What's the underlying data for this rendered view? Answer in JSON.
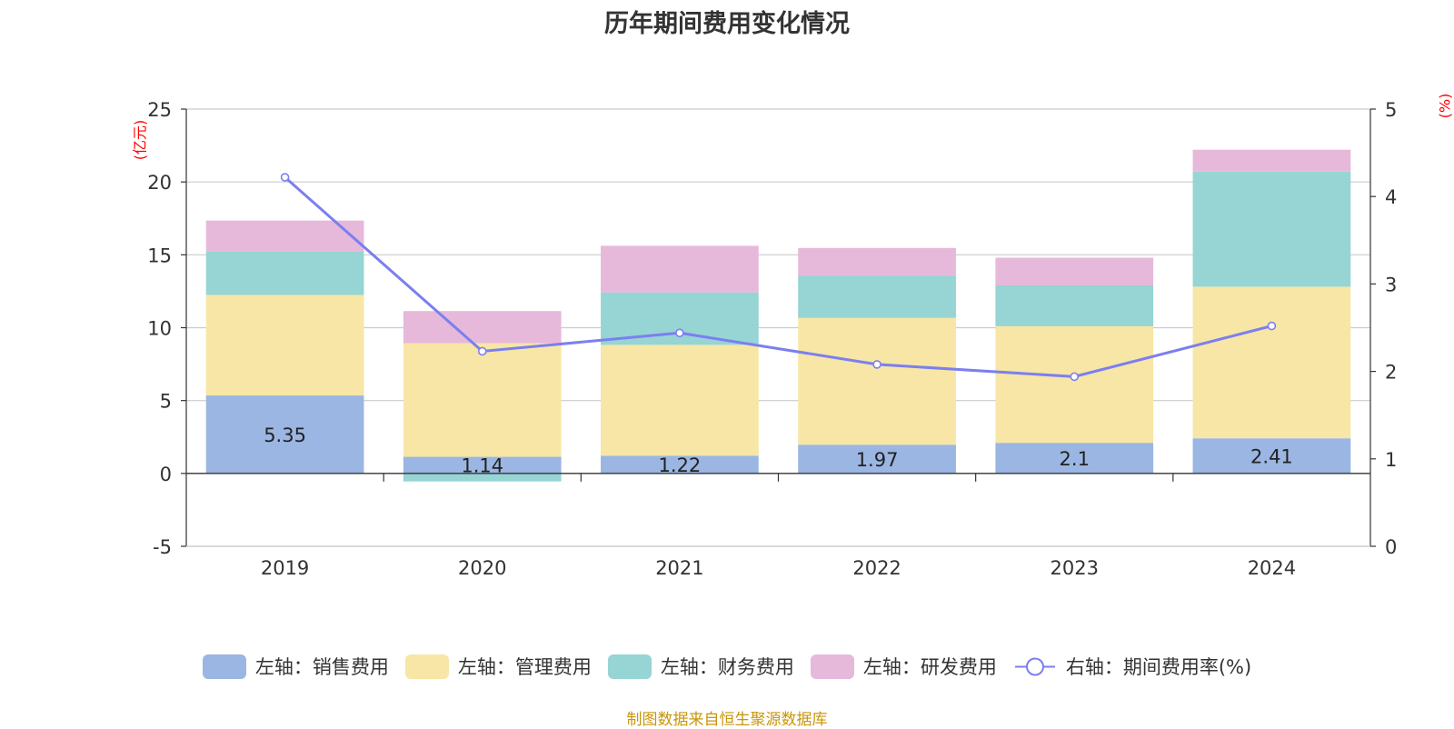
{
  "chart_data": {
    "type": "bar",
    "title": "历年期间费用变化情况",
    "categories": [
      "2019",
      "2020",
      "2021",
      "2022",
      "2023",
      "2024"
    ],
    "series": [
      {
        "name": "左轴：销售费用",
        "axis": "left",
        "color": "#9bb6e2",
        "values": [
          5.35,
          1.14,
          1.22,
          1.97,
          2.1,
          2.41
        ]
      },
      {
        "name": "左轴：管理费用",
        "axis": "left",
        "color": "#f7e6a6",
        "values": [
          6.9,
          7.8,
          7.6,
          8.7,
          8.0,
          10.4
        ]
      },
      {
        "name": "左轴：财务费用",
        "axis": "left",
        "color": "#97d4d4",
        "values": [
          3.0,
          -0.55,
          3.6,
          2.9,
          2.8,
          7.9
        ]
      },
      {
        "name": "左轴：研发费用",
        "axis": "left",
        "color": "#e6b9da",
        "values": [
          2.1,
          2.2,
          3.2,
          1.9,
          1.9,
          1.5
        ]
      },
      {
        "name": "右轴：期间费用率(%)",
        "axis": "right",
        "type": "line",
        "color": "#7b7fef",
        "values": [
          4.22,
          2.23,
          2.44,
          2.08,
          1.94,
          2.52
        ]
      }
    ],
    "label_series": "左轴：销售费用",
    "left_axis": {
      "unit": "(亿元)",
      "ylim": [
        -5,
        25
      ],
      "ticks": [
        25,
        20,
        15,
        10,
        5,
        0,
        -5
      ]
    },
    "right_axis": {
      "unit": "(%)",
      "ylim": [
        0,
        5
      ],
      "ticks": [
        5,
        4,
        3,
        2,
        1,
        0
      ]
    },
    "grid": true,
    "legend_position": "bottom"
  },
  "source": "制图数据来自恒生聚源数据库"
}
